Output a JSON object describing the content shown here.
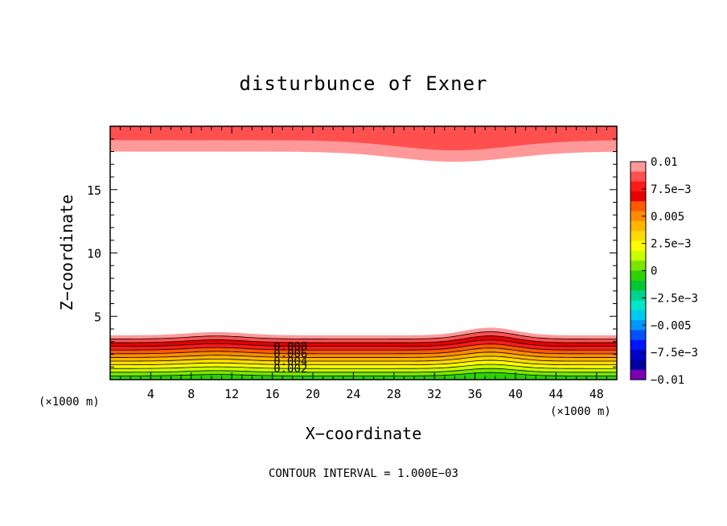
{
  "chart_data": {
    "type": "contour",
    "title": "disturbunce of Exner",
    "xlabel": "X−coordinate",
    "ylabel": "Z−coordinate",
    "x_unit_left": "(×1000 m)",
    "x_unit_right": "(×1000 m)",
    "xlim": [
      0,
      50
    ],
    "ylim": [
      0,
      20
    ],
    "x_ticks": [
      4,
      8,
      12,
      16,
      20,
      24,
      28,
      32,
      36,
      40,
      44,
      48
    ],
    "x_tick_labels": [
      "4",
      "8",
      "12",
      "16",
      "20",
      "24",
      "28",
      "32",
      "36",
      "40",
      "44",
      "48"
    ],
    "y_ticks": [
      5,
      10,
      15
    ],
    "y_tick_labels": [
      "5",
      "10",
      "15"
    ],
    "footer": "CONTOUR INTERVAL = 1.000E−03",
    "contour_interval": 0.001,
    "contour_labels": [
      "0.008",
      "0.006",
      "0.004",
      "0.002"
    ],
    "colorbar": {
      "min": -0.01,
      "max": 0.01,
      "tick_labels": [
        "0.01",
        "7.5e−3",
        "0.005",
        "2.5e−3",
        "0",
        "−2.5e−3",
        "−0.005",
        "−7.5e−3",
        "−0.01"
      ],
      "colors_top_to_bottom": [
        "#ff9999",
        "#ff5050",
        "#ff1a1a",
        "#e60000",
        "#ff5a00",
        "#ff8c00",
        "#ffb400",
        "#ffdc00",
        "#ffff00",
        "#c8ff00",
        "#78e600",
        "#2ed200",
        "#00c832",
        "#00d28c",
        "#00e6c8",
        "#00c8f0",
        "#0096ff",
        "#0050ff",
        "#0014ff",
        "#0000c8",
        "#0000a0",
        "#7800b4"
      ]
    },
    "bottom_layer": {
      "bump_centers_x": [
        10.5,
        37.5
      ],
      "bump_heights_z": [
        0.25,
        0.6
      ],
      "top_z": 3.5,
      "colors_bottom_to_top": [
        "#2ed200",
        "#78e600",
        "#c8ff00",
        "#ffff00",
        "#ffdc00",
        "#ffb400",
        "#ff8c00",
        "#ff5a00",
        "#ff1a1a",
        "#e60000",
        "#ff5050",
        "#ff9999"
      ]
    },
    "top_layer": {
      "bottom_z": 18,
      "dip_center_x": 34,
      "dip_depth_z": 0.8,
      "colors": [
        "#ff9999",
        "#ff5050"
      ]
    }
  }
}
